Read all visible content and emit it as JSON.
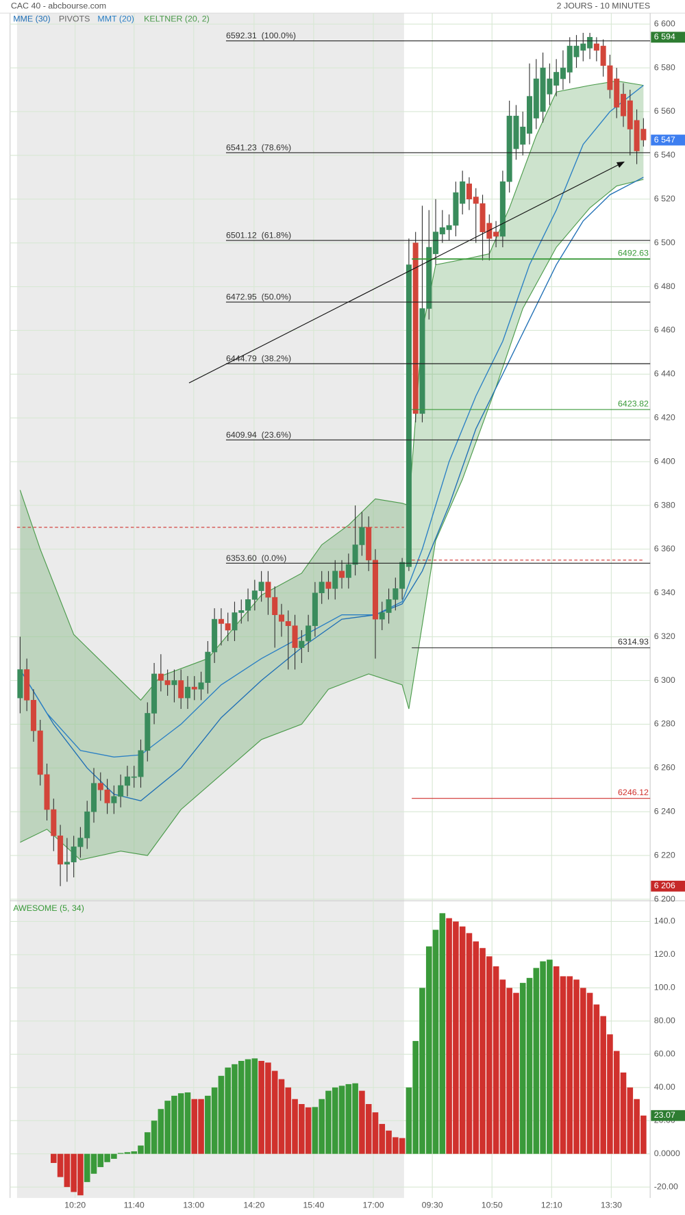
{
  "chart_data": [
    {
      "type": "candlestick",
      "title": "CAC 40 - abcbourse.com",
      "subtitle": "2 JOURS - 10 MINUTES",
      "xlim": [
        -1.5,
        94
      ],
      "xticks": [
        {
          "value": 8.2,
          "label": "10:20"
        },
        {
          "value": 17.0,
          "label": "11:40"
        },
        {
          "value": 25.9,
          "label": "13:00"
        },
        {
          "value": 34.9,
          "label": "14:20"
        },
        {
          "value": 43.8,
          "label": "15:40"
        },
        {
          "value": 52.7,
          "label": "17:00"
        },
        {
          "value": 61.5,
          "label": "09:30"
        },
        {
          "value": 70.4,
          "label": "10:50"
        },
        {
          "value": 79.3,
          "label": "12:10"
        },
        {
          "value": 88.2,
          "label": "13:30"
        }
      ],
      "ylim": [
        6200,
        6605
      ],
      "yticks": [
        {
          "value": 6200,
          "label": "6 200"
        },
        {
          "value": 6220,
          "label": "6 220"
        },
        {
          "value": 6240,
          "label": "6 240"
        },
        {
          "value": 6260,
          "label": "6 260"
        },
        {
          "value": 6280,
          "label": "6 280"
        },
        {
          "value": 6300,
          "label": "6 300"
        },
        {
          "value": 6320,
          "label": "6 320"
        },
        {
          "value": 6340,
          "label": "6 340"
        },
        {
          "value": 6360,
          "label": "6 360"
        },
        {
          "value": 6380,
          "label": "6 380"
        },
        {
          "value": 6400,
          "label": "6 400"
        },
        {
          "value": 6420,
          "label": "6 420"
        },
        {
          "value": 6440,
          "label": "6 440"
        },
        {
          "value": 6460,
          "label": "6 460"
        },
        {
          "value": 6480,
          "label": "6 480"
        },
        {
          "value": 6500,
          "label": "6 500"
        },
        {
          "value": 6520,
          "label": "6 520"
        },
        {
          "value": 6540,
          "label": "6 540"
        },
        {
          "value": 6560,
          "label": "6 560"
        },
        {
          "value": 6580,
          "label": "6 580"
        },
        {
          "value": 6600,
          "label": "6 600"
        }
      ],
      "grid": true,
      "up_color": "#3a8c5c",
      "down_color": "#d2453a",
      "open": [
        6292,
        6305,
        6291,
        6277,
        6257,
        6241,
        6229,
        6216,
        6217,
        6224,
        6228,
        6240,
        6253,
        6250,
        6244,
        6247,
        6252,
        6256,
        6256,
        6268,
        6285,
        6303,
        6300,
        6298,
        6300,
        6292,
        6297,
        6296,
        6299,
        6313,
        6328,
        6326,
        6323,
        6331,
        6332,
        6337,
        6341,
        6345,
        6338,
        6330,
        6327,
        6325,
        6315,
        6318,
        6325,
        6340,
        6345,
        6342,
        6350,
        6347,
        6353,
        6362,
        6370,
        6355,
        6328,
        6331,
        6337,
        6342,
        6352,
        6500,
        6422,
        6470,
        6495,
        6504,
        6506,
        6508,
        6518,
        6527,
        6521,
        6518,
        6509,
        6505,
        6503,
        6528,
        6543,
        6545,
        6550,
        6557,
        6560,
        6568,
        6572,
        6575,
        6578,
        6585,
        6588,
        6589,
        6591,
        6590,
        6581,
        6575,
        6568,
        6565,
        6556,
        6552
      ],
      "high": [
        6320,
        6310,
        6296,
        6282,
        6262,
        6246,
        6234,
        6228,
        6229,
        6233,
        6245,
        6260,
        6258,
        6255,
        6252,
        6257,
        6261,
        6261,
        6273,
        6290,
        6308,
        6312,
        6305,
        6305,
        6305,
        6302,
        6302,
        6304,
        6318,
        6333,
        6333,
        6331,
        6336,
        6337,
        6342,
        6346,
        6350,
        6350,
        6343,
        6335,
        6332,
        6330,
        6323,
        6330,
        6345,
        6350,
        6350,
        6355,
        6355,
        6358,
        6380,
        6377,
        6375,
        6360,
        6336,
        6342,
        6347,
        6356,
        6502,
        6505,
        6517,
        6515,
        6520,
        6515,
        6513,
        6528,
        6533,
        6530,
        6525,
        6522,
        6513,
        6510,
        6533,
        6565,
        6563,
        6560,
        6582,
        6584,
        6587,
        6582,
        6584,
        6588,
        6594,
        6595,
        6596,
        6596,
        6594,
        6593,
        6586,
        6580,
        6573,
        6570,
        6561,
        6557
      ],
      "low": [
        6285,
        6286,
        6272,
        6252,
        6236,
        6222,
        6206,
        6208,
        6210,
        6219,
        6223,
        6235,
        6245,
        6239,
        6239,
        6242,
        6247,
        6251,
        6251,
        6263,
        6280,
        6295,
        6293,
        6290,
        6287,
        6287,
        6291,
        6291,
        6294,
        6308,
        6316,
        6318,
        6318,
        6326,
        6327,
        6332,
        6336,
        6330,
        6315,
        6320,
        6305,
        6305,
        6308,
        6313,
        6320,
        6335,
        6337,
        6337,
        6342,
        6342,
        6348,
        6357,
        6350,
        6310,
        6323,
        6326,
        6332,
        6337,
        6350,
        6418,
        6418,
        6465,
        6490,
        6500,
        6501,
        6503,
        6513,
        6515,
        6500,
        6492,
        6492,
        6498,
        6498,
        6523,
        6538,
        6540,
        6545,
        6552,
        6555,
        6563,
        6567,
        6570,
        6573,
        6580,
        6583,
        6584,
        6583,
        6576,
        6566,
        6557,
        6553,
        6540,
        6536,
        6544
      ],
      "close": [
        6305,
        6291,
        6277,
        6257,
        6241,
        6229,
        6216,
        6217,
        6224,
        6228,
        6240,
        6253,
        6250,
        6244,
        6247,
        6252,
        6256,
        6256,
        6268,
        6285,
        6303,
        6300,
        6298,
        6300,
        6292,
        6297,
        6296,
        6299,
        6313,
        6328,
        6326,
        6323,
        6331,
        6332,
        6337,
        6341,
        6345,
        6338,
        6330,
        6327,
        6325,
        6315,
        6318,
        6325,
        6340,
        6345,
        6342,
        6350,
        6347,
        6353,
        6362,
        6370,
        6355,
        6328,
        6331,
        6337,
        6342,
        6354,
        6490,
        6422,
        6470,
        6498,
        6505,
        6507,
        6508,
        6523,
        6528,
        6520,
        6518,
        6505,
        6502,
        6503,
        6528,
        6558,
        6558,
        6553,
        6567,
        6575,
        6580,
        6575,
        6578,
        6580,
        6590,
        6590,
        6591,
        6594,
        6588,
        6581,
        6570,
        6562,
        6558,
        6552,
        6542,
        6547
      ],
      "series": [
        {
          "name": "MME (30)",
          "color": "#1f6fb5",
          "x": [
            0,
            5,
            10,
            14,
            18,
            24,
            30,
            36,
            42,
            48,
            53,
            57,
            60,
            64,
            68,
            72,
            76,
            80,
            84,
            88,
            93
          ],
          "values": [
            6305,
            6280,
            6260,
            6248,
            6245,
            6260,
            6283,
            6300,
            6315,
            6328,
            6330,
            6335,
            6350,
            6380,
            6415,
            6440,
            6465,
            6490,
            6510,
            6522,
            6530
          ]
        },
        {
          "name": "MMT (20)",
          "color": "#2a7fc4",
          "x": [
            0,
            4,
            9,
            14,
            18,
            24,
            30,
            36,
            42,
            48,
            53,
            57,
            60,
            64,
            68,
            72,
            76,
            80,
            84,
            88,
            93
          ],
          "values": [
            6305,
            6285,
            6268,
            6265,
            6266,
            6280,
            6298,
            6310,
            6320,
            6330,
            6330,
            6336,
            6360,
            6400,
            6430,
            6455,
            6490,
            6515,
            6545,
            6560,
            6572
          ]
        }
      ],
      "keltner": {
        "name": "KELTNER (20, 2)",
        "color": "#4a9a4a",
        "upper": {
          "x": [
            0,
            3,
            8,
            15,
            18,
            21,
            28,
            36,
            42,
            45,
            49,
            53,
            57,
            58,
            60,
            62,
            67,
            70,
            73,
            77,
            80,
            85,
            89,
            93
          ],
          "values": [
            6387,
            6360,
            6321,
            6300,
            6291,
            6302,
            6310,
            6339,
            6349,
            6362,
            6371,
            6383,
            6381,
            6380,
            6460,
            6490,
            6493,
            6495,
            6516,
            6549,
            6569,
            6572,
            6574,
            6572
          ]
        },
        "lower": {
          "x": [
            0,
            4,
            9,
            15,
            19,
            24,
            30,
            36,
            42,
            46,
            52,
            57,
            58,
            62,
            66,
            71,
            75,
            80,
            85,
            89,
            93
          ],
          "values": [
            6226,
            6232,
            6218,
            6222,
            6220,
            6241,
            6257,
            6273,
            6280,
            6296,
            6303,
            6298,
            6287,
            6364,
            6392,
            6434,
            6470,
            6498,
            6516,
            6526,
            6529
          ]
        }
      },
      "pivots": {
        "name": "PIVOTS",
        "levels": [
          6492.63,
          6423.82,
          6314.93,
          6246.12
        ],
        "colors": [
          "#3a9a3a",
          "#3a9a3a",
          "#333333",
          "#d0312d"
        ]
      },
      "fibonacci": [
        {
          "value": 6592.31,
          "label": "6592.31  (100.0%)"
        },
        {
          "value": 6541.23,
          "label": "6541.23  (78.6%)"
        },
        {
          "value": 6501.12,
          "label": "6501.12  (61.8%)"
        },
        {
          "value": 6472.95,
          "label": "6472.95  (50.0%)"
        },
        {
          "value": 6444.79,
          "label": "6444.79  (38.2%)"
        },
        {
          "value": 6409.94,
          "label": "6409.94  (23.6%)"
        },
        {
          "value": 6353.6,
          "label": "6353.60  (0.0%)"
        }
      ],
      "dashed_levels": [
        6370,
        6355
      ],
      "trend_arrow": {
        "x": [
          25.2,
          90.1
        ],
        "y": [
          6436,
          6537
        ]
      },
      "badges": [
        {
          "value": 6594,
          "label": "6 594",
          "color": "#2e7d32"
        },
        {
          "value": 6547,
          "label": "6 547",
          "color": "#3d7ef0"
        },
        {
          "value": 6206,
          "label": "6 206",
          "color": "#c62828"
        }
      ]
    },
    {
      "type": "bar",
      "title": "AWESOME (5, 34)",
      "xlim": [
        -1.5,
        94
      ],
      "ylim": [
        -26.6,
        152
      ],
      "yticks": [
        {
          "value": 140,
          "label": "140.0"
        },
        {
          "value": 120,
          "label": "120.0"
        },
        {
          "value": 100,
          "label": "100.0"
        },
        {
          "value": 80,
          "label": "80.00"
        },
        {
          "value": 60,
          "label": "60.00"
        },
        {
          "value": 40,
          "label": "40.00"
        },
        {
          "value": 20,
          "label": "20.00"
        },
        {
          "value": 0,
          "label": "0.0000"
        },
        {
          "value": -20,
          "label": "-20.00"
        }
      ],
      "grid": true,
      "up_color": "#3a9a3a",
      "down_color": "#d0312d",
      "badge_color": "#2e7d32",
      "values": [
        null,
        null,
        null,
        null,
        null,
        -5.5,
        -14,
        -20,
        -23,
        -25,
        -17,
        -12,
        -8,
        -5,
        -3,
        0.5,
        1,
        1.5,
        5,
        13,
        20,
        27,
        32,
        35,
        36.5,
        37,
        33,
        33,
        35,
        40,
        47,
        52,
        54,
        56,
        57,
        57.5,
        56,
        55,
        50,
        45,
        40,
        33,
        30,
        28,
        28.2,
        33,
        38,
        40,
        41,
        42,
        42.5,
        38,
        30,
        25,
        18,
        14,
        10,
        9.5,
        40,
        68,
        100,
        125,
        135,
        145,
        142,
        140,
        137,
        133,
        128,
        124,
        119,
        113,
        105,
        100,
        97,
        103,
        106,
        112,
        116,
        117,
        113,
        107,
        107,
        105,
        100,
        97,
        90,
        83,
        72,
        62,
        49,
        40,
        33,
        23.07
      ]
    }
  ]
}
